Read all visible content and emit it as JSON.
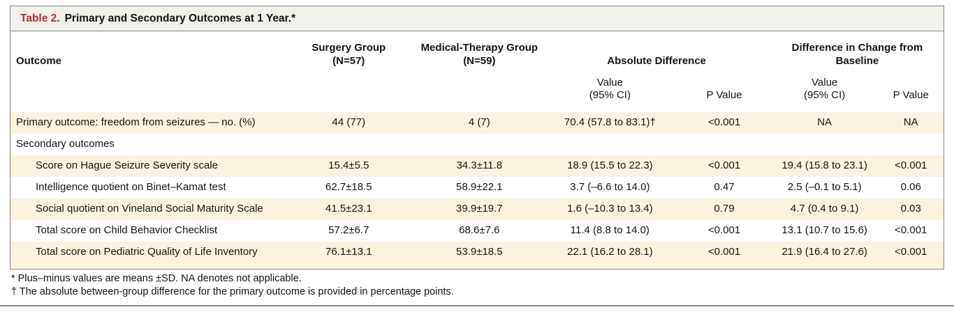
{
  "title": {
    "label": "Table 2.",
    "text": "Primary and Secondary Outcomes at 1 Year.*"
  },
  "header": {
    "outcome": "Outcome",
    "surgery_line1": "Surgery Group",
    "surgery_line2": "(N=57)",
    "medical_line1": "Medical-Therapy Group",
    "medical_line2": "(N=59)",
    "abs_diff": "Absolute Difference",
    "change_diff": "Difference in Change from Baseline",
    "value_ci_line1": "Value",
    "value_ci_line2": "(95% CI)",
    "p_value": "P Value"
  },
  "table": {
    "rows": [
      {
        "label": "Primary outcome: freedom from seizures — no. (%)",
        "cells": [
          "44 (77)",
          "4 (7)",
          "70.4 (57.8 to 83.1)†",
          "<0.001",
          "NA",
          "NA"
        ]
      },
      {
        "label": "Secondary outcomes",
        "cells": [
          "",
          "",
          "",
          "",
          "",
          ""
        ]
      },
      {
        "label": "Score on Hague Seizure Severity scale",
        "cells": [
          "15.4±5.5",
          "34.3±11.8",
          "18.9 (15.5 to 22.3)",
          "<0.001",
          "19.4 (15.8 to 23.1)",
          "<0.001"
        ]
      },
      {
        "label": "Intelligence quotient on Binet–Kamat test",
        "cells": [
          "62.7±18.5",
          "58.9±22.1",
          "3.7 (–6.6 to 14.0)",
          "0.47",
          "2.5 (–0.1 to 5.1)",
          "0.06"
        ]
      },
      {
        "label": "Social quotient on Vineland Social Maturity Scale",
        "cells": [
          "41.5±23.1",
          "39.9±19.7",
          "1.6 (–10.3 to 13.4)",
          "0.79",
          "4.7 (0.4 to 9.1)",
          "0.03"
        ]
      },
      {
        "label": "Total score on Child Behavior Checklist",
        "cells": [
          "57.2±6.7",
          "68.6±7.6",
          "11.4 (8.8 to 14.0)",
          "<0.001",
          "13.1 (10.7 to 15.6)",
          "<0.001"
        ]
      },
      {
        "label": "Total score on Pediatric Quality of Life Inventory",
        "cells": [
          "76.1±13.1",
          "53.9±18.5",
          "22.1 (16.2 to 28.1)",
          "<0.001",
          "21.9 (16.4 to 27.6)",
          "<0.001"
        ]
      }
    ]
  },
  "footnotes": [
    "* Plus–minus values are means ±SD. NA denotes not applicable.",
    "† The absolute between-group difference for the primary outcome is provided in percentage points."
  ],
  "colors": {
    "accent_red": "#bd2b31",
    "row_shade": "#faf3e0",
    "title_bar_bg": "#f1f0ea",
    "border_gray": "#878787"
  }
}
